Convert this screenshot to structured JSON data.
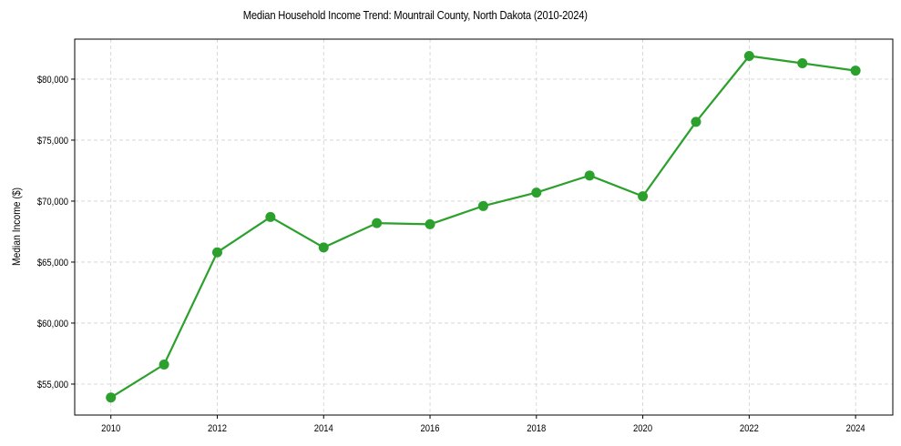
{
  "chart_data": {
    "type": "line",
    "title": "Median Household Income Trend: Mountrail County, North Dakota (2010-2024)",
    "xlabel": "",
    "ylabel": "Median Income ($)",
    "x": [
      2010,
      2011,
      2012,
      2013,
      2014,
      2015,
      2016,
      2017,
      2018,
      2019,
      2020,
      2021,
      2022,
      2023,
      2024
    ],
    "series": [
      {
        "name": "Median Household Income",
        "color": "#2ca02c",
        "marker": "circle",
        "values": [
          53900,
          56600,
          65800,
          68700,
          66200,
          68200,
          68100,
          69600,
          70700,
          72100,
          70400,
          76500,
          81900,
          81300,
          80700
        ]
      }
    ],
    "xticks": [
      2010,
      2012,
      2014,
      2016,
      2018,
      2020,
      2022,
      2024
    ],
    "xtick_labels": [
      "2010",
      "2012",
      "2014",
      "2016",
      "2018",
      "2020",
      "2022",
      "2024"
    ],
    "yticks": [
      55000,
      60000,
      65000,
      70000,
      75000,
      80000
    ],
    "ytick_labels": [
      "$55,000",
      "$60,000",
      "$65,000",
      "$70,000",
      "$75,000",
      "$80,000"
    ],
    "xlim": [
      2009.32,
      2024.7
    ],
    "ylim": [
      52460,
      83280
    ],
    "grid": true,
    "grid_style": "dashed",
    "legend": null
  },
  "figure": {
    "title": "Median Household Income Trend: Mountrail County, North Dakota (2010-2024)",
    "y_axis_label": "Median Income ($)"
  }
}
